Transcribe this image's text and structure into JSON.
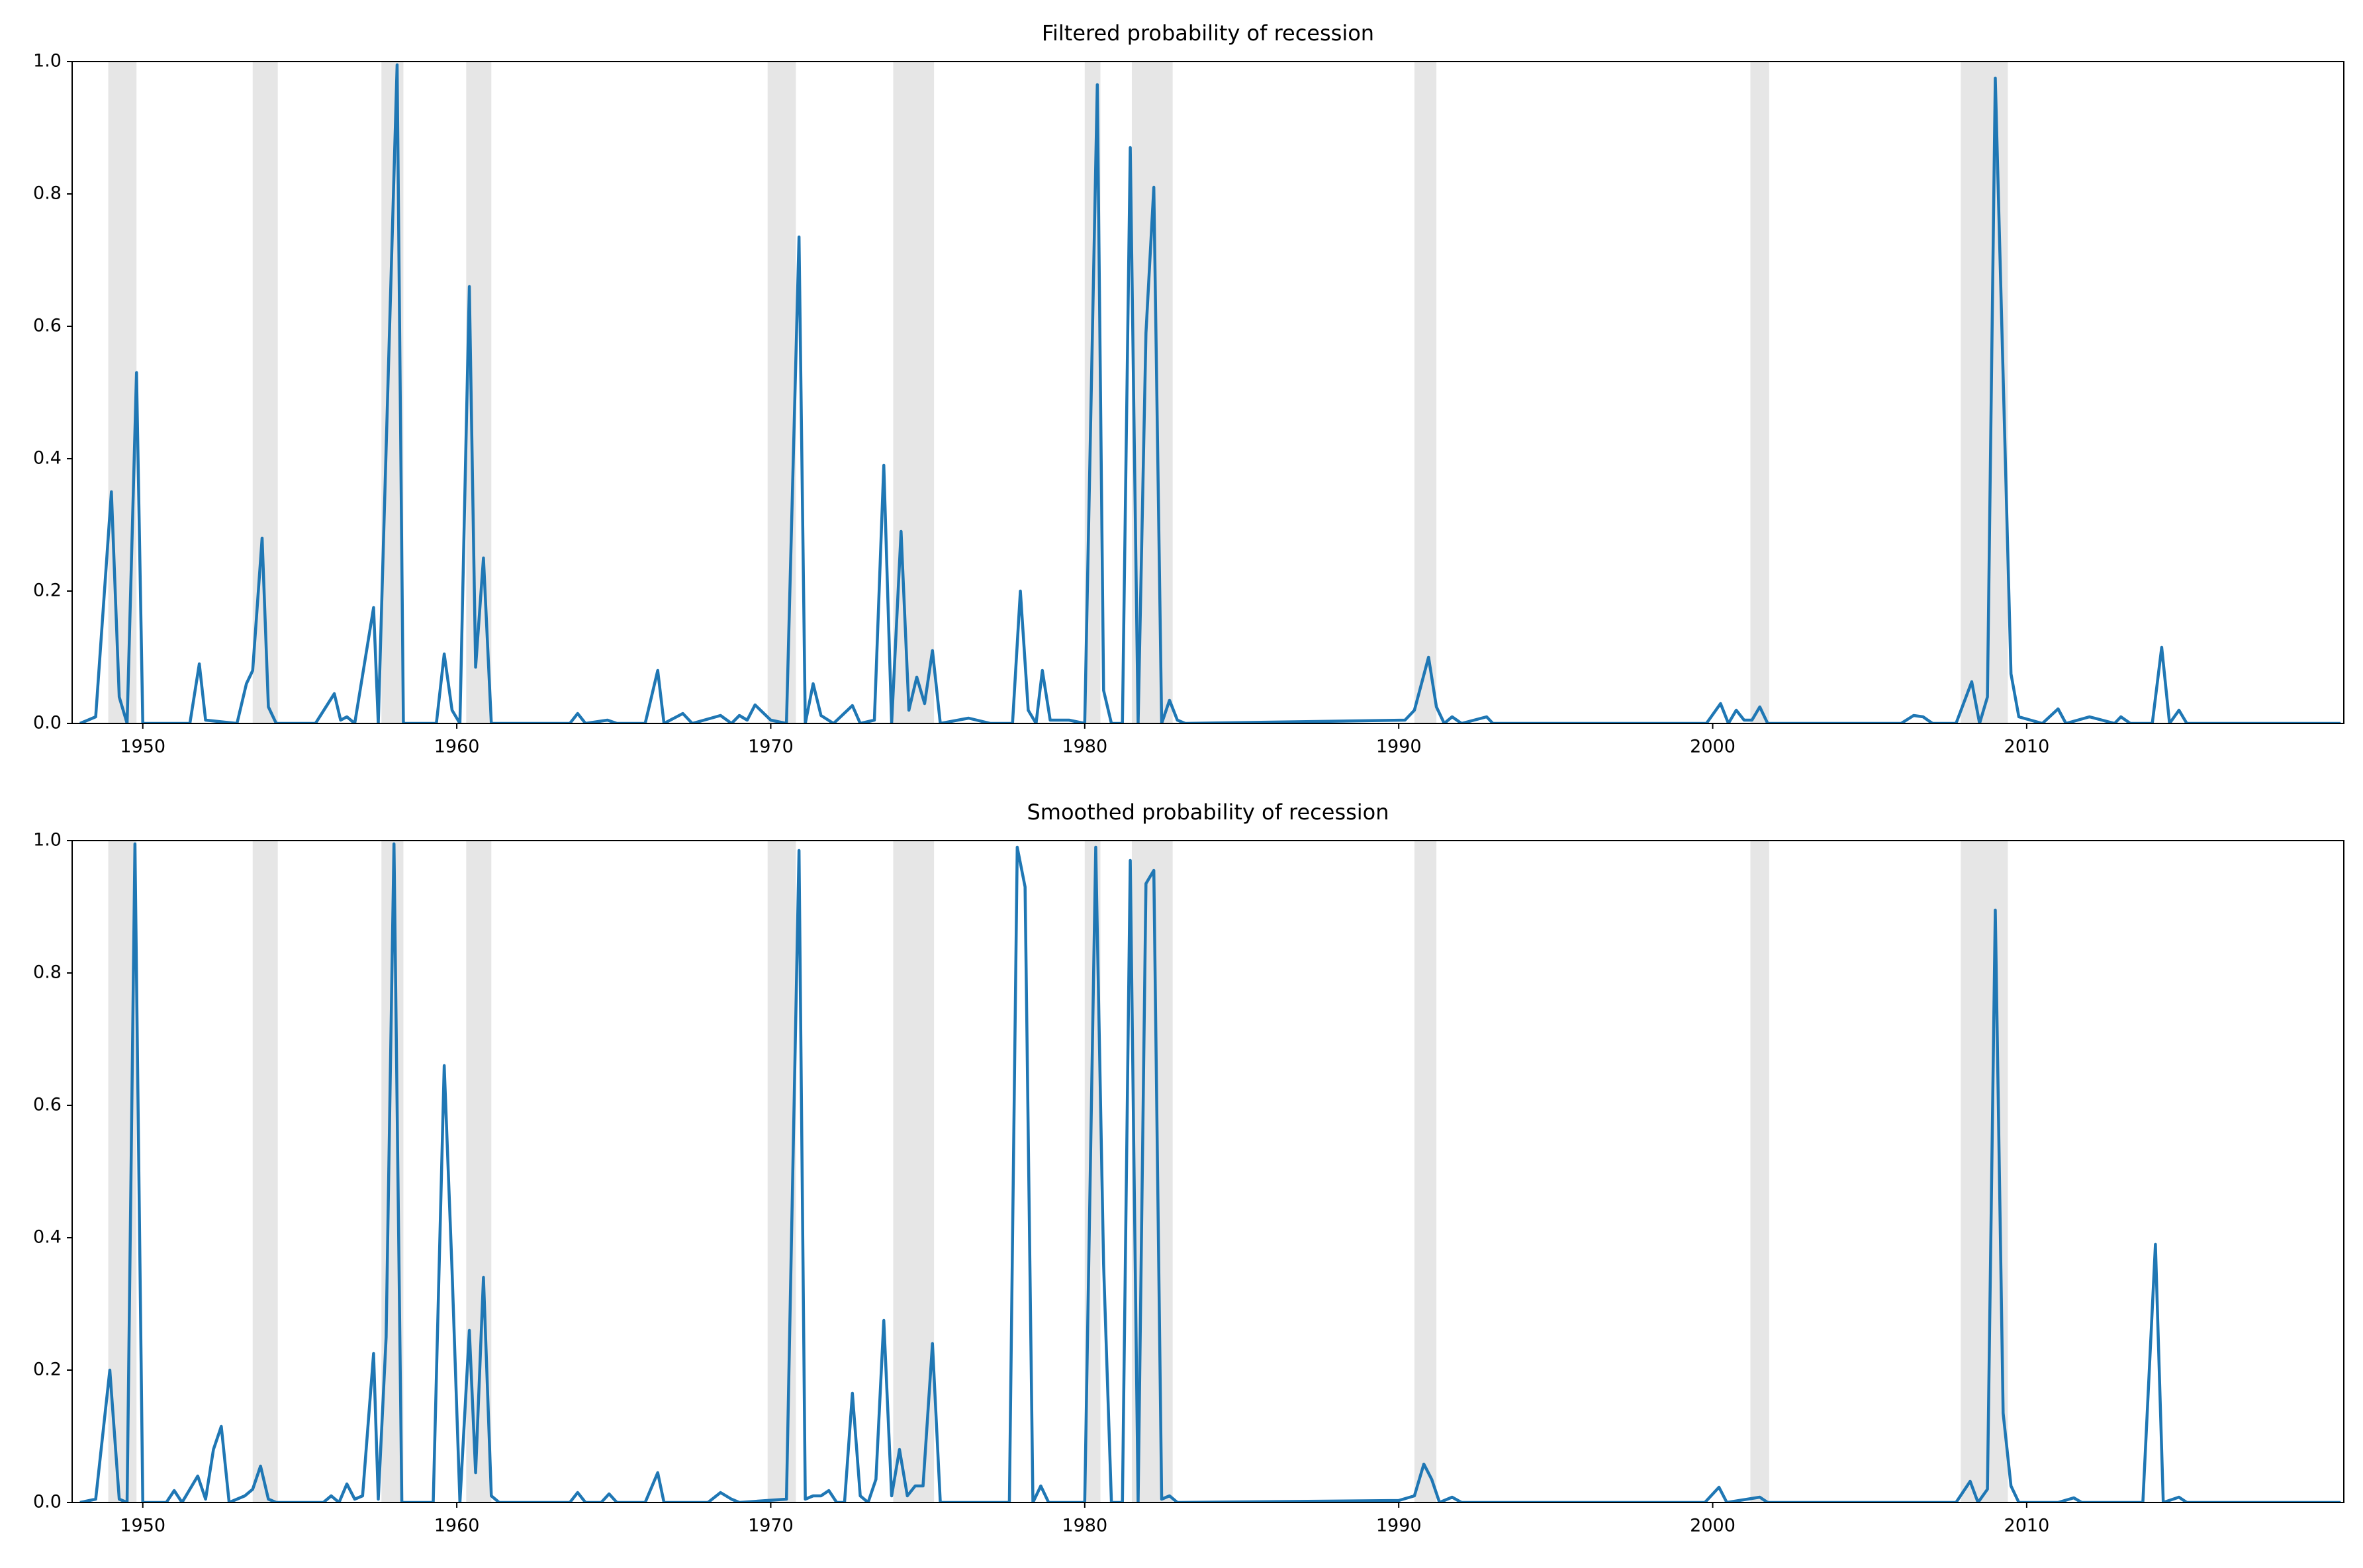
{
  "chart_data": [
    {
      "type": "line",
      "title": "Filtered probability of recession",
      "xlim": [
        1947.75,
        2020.1
      ],
      "xticks": [
        1950,
        1960,
        1970,
        1980,
        1990,
        2000,
        2010
      ],
      "ylim": [
        0,
        1
      ],
      "yticks": [
        {
          "value": 0,
          "label": "0.0"
        },
        {
          "value": 0.2,
          "label": "0.2"
        },
        {
          "value": 0.4,
          "label": "0.4"
        },
        {
          "value": 0.6,
          "label": "0.6"
        },
        {
          "value": 0.8,
          "label": "0.8"
        },
        {
          "value": 1,
          "label": "1.0"
        }
      ],
      "shaded_periods": [
        [
          1948.9,
          1949.8
        ],
        [
          1953.5,
          1954.3
        ],
        [
          1957.6,
          1958.3
        ],
        [
          1960.3,
          1961.1
        ],
        [
          1969.9,
          1970.8
        ],
        [
          1973.9,
          1975.2
        ],
        [
          1980.0,
          1980.5
        ],
        [
          1981.5,
          1982.8
        ],
        [
          1990.5,
          1991.2
        ],
        [
          2001.2,
          2001.8
        ],
        [
          2007.9,
          2009.4
        ]
      ],
      "shade_color": "#e6e6e6",
      "x": [
        1948.0,
        1948.5,
        1949.0,
        1949.25,
        1949.5,
        1949.8,
        1950.0,
        1951.5,
        1951.8,
        1952.0,
        1953.0,
        1953.3,
        1953.5,
        1953.8,
        1954.0,
        1954.25,
        1955.5,
        1956.1,
        1956.3,
        1956.5,
        1956.75,
        1957.35,
        1957.5,
        1958.1,
        1958.3,
        1959.35,
        1959.6,
        1959.85,
        1960.1,
        1960.4,
        1960.6,
        1960.85,
        1961.1,
        1963.6,
        1963.85,
        1964.1,
        1964.8,
        1965.1,
        1966.0,
        1966.4,
        1966.6,
        1967.2,
        1967.5,
        1968.4,
        1968.75,
        1969.0,
        1969.25,
        1969.5,
        1970.0,
        1970.5,
        1970.9,
        1971.1,
        1971.35,
        1971.6,
        1972.0,
        1972.6,
        1972.85,
        1973.3,
        1973.6,
        1973.85,
        1974.15,
        1974.4,
        1974.65,
        1974.9,
        1975.15,
        1975.4,
        1976.3,
        1977.0,
        1977.7,
        1977.95,
        1978.2,
        1978.45,
        1978.65,
        1978.9,
        1979.5,
        1980.0,
        1980.4,
        1980.6,
        1980.85,
        1981.2,
        1981.45,
        1981.7,
        1981.95,
        1982.2,
        1982.45,
        1982.7,
        1982.95,
        1983.2,
        1990.2,
        1990.5,
        1990.95,
        1991.2,
        1991.45,
        1991.7,
        1992.0,
        1992.8,
        1993.0,
        1999.8,
        2000.25,
        2000.5,
        2000.75,
        2001.0,
        2001.25,
        2001.5,
        2001.75,
        2006.0,
        2006.4,
        2006.7,
        2007.0,
        2007.75,
        2008.25,
        2008.5,
        2008.75,
        2009.0,
        2009.5,
        2009.75,
        2010.5,
        2011.0,
        2011.25,
        2012.0,
        2012.8,
        2013.0,
        2013.3,
        2014.0,
        2014.3,
        2014.55,
        2014.85,
        2015.1,
        2020.0
      ],
      "series": [
        {
          "color": "#1f77b4",
          "values": [
            0,
            0.01,
            0.35,
            0.04,
            0,
            0.53,
            0,
            0,
            0.09,
            0.005,
            0,
            0.06,
            0.08,
            0.28,
            0.025,
            0,
            0,
            0.045,
            0.005,
            0.01,
            0,
            0.175,
            0,
            0.995,
            0,
            0,
            0.105,
            0.02,
            0,
            0.66,
            0.085,
            0.25,
            0,
            0,
            0.015,
            0,
            0.005,
            0,
            0,
            0.08,
            0,
            0.015,
            0,
            0.012,
            0,
            0.012,
            0.005,
            0.028,
            0.005,
            0,
            0.735,
            0,
            0.06,
            0.012,
            0,
            0.027,
            0,
            0.005,
            0.39,
            0,
            0.29,
            0.02,
            0.07,
            0.03,
            0.11,
            0,
            0.008,
            0,
            0,
            0.2,
            0.02,
            0,
            0.08,
            0.005,
            0.005,
            0,
            0.965,
            0.05,
            0,
            0,
            0.87,
            0,
            0.59,
            0.81,
            0,
            0.035,
            0.005,
            0,
            0.005,
            0.02,
            0.1,
            0.025,
            0,
            0.01,
            0,
            0.01,
            0,
            0,
            0.03,
            0,
            0.02,
            0.005,
            0.005,
            0.025,
            0,
            0,
            0.012,
            0.01,
            0,
            0,
            0.063,
            0,
            0.04,
            0.975,
            0.075,
            0.01,
            0,
            0.022,
            0,
            0.01,
            0,
            0.01,
            0,
            0,
            0.115,
            0,
            0.02,
            0,
            0
          ]
        }
      ]
    },
    {
      "type": "line",
      "title": "Smoothed probability of recession",
      "xlim": [
        1947.75,
        2020.1
      ],
      "xticks": [
        1950,
        1960,
        1970,
        1980,
        1990,
        2000,
        2010
      ],
      "ylim": [
        0,
        1
      ],
      "yticks": [
        {
          "value": 0,
          "label": "0.0"
        },
        {
          "value": 0.2,
          "label": "0.2"
        },
        {
          "value": 0.4,
          "label": "0.4"
        },
        {
          "value": 0.6,
          "label": "0.6"
        },
        {
          "value": 0.8,
          "label": "0.8"
        },
        {
          "value": 1,
          "label": "1.0"
        }
      ],
      "shaded_periods": [
        [
          1948.9,
          1949.8
        ],
        [
          1953.5,
          1954.3
        ],
        [
          1957.6,
          1958.3
        ],
        [
          1960.3,
          1961.1
        ],
        [
          1969.9,
          1970.8
        ],
        [
          1973.9,
          1975.2
        ],
        [
          1980.0,
          1980.5
        ],
        [
          1981.5,
          1982.8
        ],
        [
          1990.5,
          1991.2
        ],
        [
          2001.2,
          2001.8
        ],
        [
          2007.9,
          2009.4
        ]
      ],
      "shade_color": "#e6e6e6",
      "x": [
        1948.0,
        1948.5,
        1948.95,
        1949.25,
        1949.5,
        1949.75,
        1950.0,
        1950.75,
        1951.0,
        1951.25,
        1951.75,
        1952.0,
        1952.25,
        1952.5,
        1952.75,
        1953.25,
        1953.5,
        1953.75,
        1954.0,
        1954.25,
        1955.75,
        1956.0,
        1956.25,
        1956.5,
        1956.75,
        1957.0,
        1957.35,
        1957.5,
        1957.75,
        1958.0,
        1958.25,
        1959.25,
        1959.6,
        1959.85,
        1960.1,
        1960.4,
        1960.6,
        1960.85,
        1961.1,
        1961.35,
        1963.6,
        1963.85,
        1964.1,
        1964.6,
        1964.85,
        1965.1,
        1966.0,
        1966.4,
        1966.6,
        1968.0,
        1968.4,
        1968.75,
        1969.0,
        1970.5,
        1970.9,
        1971.1,
        1971.35,
        1971.6,
        1971.85,
        1972.1,
        1972.35,
        1972.6,
        1972.85,
        1973.1,
        1973.35,
        1973.6,
        1973.85,
        1974.1,
        1974.35,
        1974.6,
        1974.85,
        1975.15,
        1975.4,
        1977.6,
        1977.85,
        1978.1,
        1978.35,
        1978.6,
        1978.85,
        1980.0,
        1980.35,
        1980.6,
        1980.85,
        1981.2,
        1981.45,
        1981.7,
        1981.95,
        1982.2,
        1982.45,
        1982.7,
        1982.95,
        1990.0,
        1990.5,
        1990.8,
        1991.05,
        1991.3,
        1991.7,
        1992.0,
        1999.75,
        2000.2,
        2000.45,
        2001.5,
        2001.75,
        2007.75,
        2008.2,
        2008.45,
        2008.75,
        2009.0,
        2009.25,
        2009.5,
        2009.75,
        2011.0,
        2011.5,
        2011.75,
        2013.7,
        2014.1,
        2014.35,
        2014.85,
        2015.1,
        2020.0
      ],
      "series": [
        {
          "color": "#1f77b4",
          "values": [
            0,
            0.005,
            0.2,
            0.005,
            0,
            0.995,
            0,
            0,
            0.018,
            0,
            0.04,
            0.005,
            0.08,
            0.115,
            0,
            0.01,
            0.02,
            0.055,
            0.005,
            0,
            0,
            0.01,
            0,
            0.028,
            0.005,
            0.01,
            0.225,
            0.005,
            0.25,
            0.995,
            0,
            0,
            0.66,
            0.35,
            0,
            0.26,
            0.045,
            0.34,
            0.01,
            0,
            0,
            0.015,
            0,
            0,
            0.013,
            0,
            0,
            0.045,
            0,
            0,
            0.015,
            0.005,
            0,
            0.005,
            0.985,
            0.005,
            0.01,
            0.01,
            0.018,
            0,
            0,
            0.165,
            0.01,
            0,
            0.035,
            0.275,
            0.01,
            0.08,
            0.01,
            0.025,
            0.025,
            0.24,
            0,
            0,
            0.99,
            0.93,
            0,
            0.025,
            0,
            0,
            0.99,
            0.36,
            0,
            0,
            0.97,
            0,
            0.935,
            0.955,
            0.005,
            0.01,
            0,
            0.003,
            0.01,
            0.058,
            0.035,
            0,
            0.008,
            0,
            0,
            0.023,
            0,
            0.008,
            0,
            0,
            0.032,
            0,
            0.02,
            0.895,
            0.135,
            0.025,
            0,
            0,
            0.007,
            0,
            0,
            0.39,
            0,
            0.008,
            0,
            0
          ]
        }
      ]
    }
  ]
}
